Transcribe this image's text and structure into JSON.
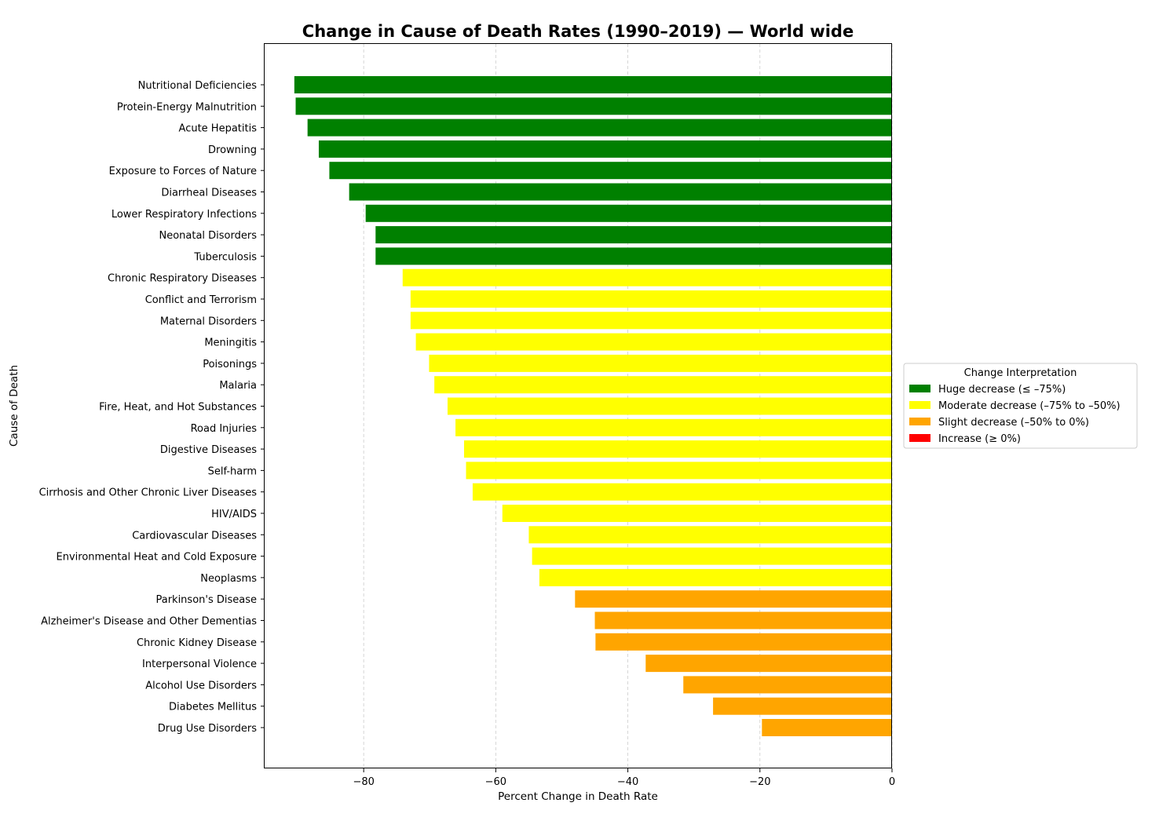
{
  "chart_data": {
    "type": "bar",
    "orientation": "horizontal",
    "title": "Change in Cause of Death Rates (1990–2019) — World wide",
    "xlabel": "Percent Change in Death Rate",
    "ylabel": "Cause of Death",
    "xlim": [
      -95,
      0
    ],
    "xticks": [
      -80,
      -60,
      -40,
      -20,
      0
    ],
    "xtick_labels": [
      "−80",
      "−60",
      "−40",
      "−20",
      "0"
    ],
    "grid": "x-dashed",
    "legend": {
      "title": "Change Interpretation",
      "placement": "center-right-outside",
      "entries": [
        {
          "label": "Huge decrease (≤ –75%)",
          "color": "#008000"
        },
        {
          "label": "Moderate decrease (–75% to –50%)",
          "color": "#ffff00"
        },
        {
          "label": "Slight decrease (–50% to 0%)",
          "color": "#ffa500"
        },
        {
          "label": "Increase (≥ 0%)",
          "color": "#ff0000"
        }
      ]
    },
    "categories": [
      "Nutritional Deficiencies",
      "Protein-Energy Malnutrition",
      "Acute Hepatitis",
      "Drowning",
      "Exposure to Forces of Nature",
      "Diarrheal Diseases",
      "Lower Respiratory Infections",
      "Neonatal Disorders",
      "Tuberculosis",
      "Chronic Respiratory Diseases",
      "Conflict and Terrorism",
      "Maternal Disorders",
      "Meningitis",
      "Poisonings",
      "Malaria",
      "Fire, Heat, and Hot Substances",
      "Road Injuries",
      "Digestive Diseases",
      "Self-harm",
      "Cirrhosis and Other Chronic Liver Diseases",
      "HIV/AIDS",
      "Cardiovascular Diseases",
      "Environmental Heat and Cold Exposure",
      "Neoplasms",
      "Parkinson's Disease",
      "Alzheimer's Disease and Other Dementias",
      "Chronic Kidney Disease",
      "Interpersonal Violence",
      "Alcohol Use Disorders",
      "Diabetes Mellitus",
      "Drug Use Disorders"
    ],
    "values": [
      -90.5,
      -90.3,
      -88.5,
      -86.8,
      -85.2,
      -82.2,
      -79.7,
      -78.2,
      -78.2,
      -74.1,
      -72.9,
      -72.9,
      -72.1,
      -70.1,
      -69.3,
      -67.3,
      -66.1,
      -64.8,
      -64.5,
      -63.5,
      -59.0,
      -55.0,
      -54.5,
      -53.4,
      -48.0,
      -45.0,
      -44.9,
      -37.3,
      -31.6,
      -27.1,
      -19.7
    ],
    "bar_colors": [
      "#008000",
      "#008000",
      "#008000",
      "#008000",
      "#008000",
      "#008000",
      "#008000",
      "#008000",
      "#008000",
      "#ffff00",
      "#ffff00",
      "#ffff00",
      "#ffff00",
      "#ffff00",
      "#ffff00",
      "#ffff00",
      "#ffff00",
      "#ffff00",
      "#ffff00",
      "#ffff00",
      "#ffff00",
      "#ffff00",
      "#ffff00",
      "#ffff00",
      "#ffa500",
      "#ffa500",
      "#ffa500",
      "#ffa500",
      "#ffa500",
      "#ffa500",
      "#ffa500"
    ]
  }
}
